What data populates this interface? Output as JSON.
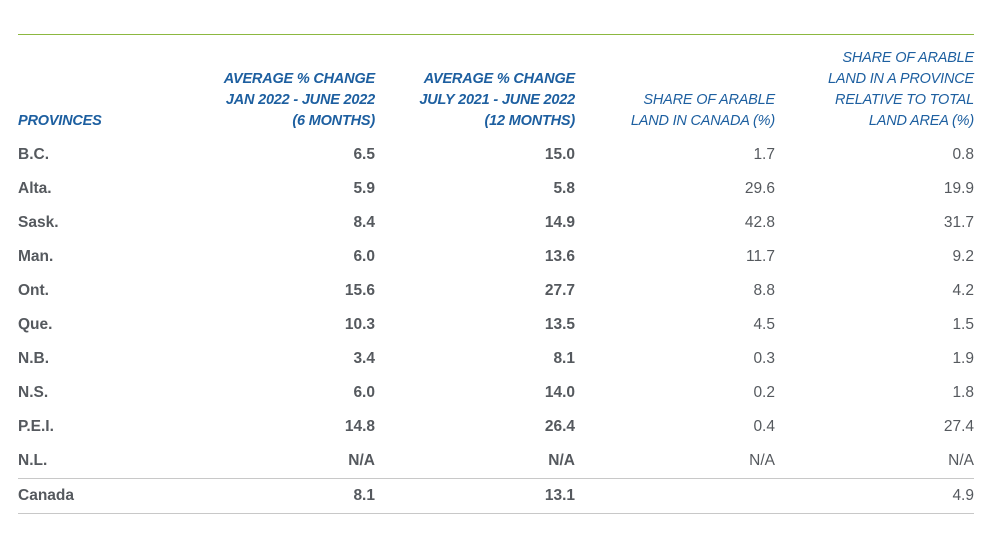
{
  "table": {
    "headers": {
      "provinces": "PROVINCES",
      "col1": "AVERAGE % CHANGE\nJAN 2022 - JUNE 2022\n(6 MONTHS)",
      "col2": "AVERAGE % CHANGE\nJULY 2021 - JUNE 2022\n(12 MONTHS)",
      "col3": "SHARE OF ARABLE\nLAND IN CANADA (%)",
      "col4": "SHARE OF ARABLE\nLAND IN A PROVINCE\nRELATIVE TO TOTAL\nLAND AREA (%)"
    },
    "rows": [
      {
        "province": "B.C.",
        "v1": "6.5",
        "v2": "15.0",
        "v3": "1.7",
        "v4": "0.8"
      },
      {
        "province": "Alta.",
        "v1": "5.9",
        "v2": "5.8",
        "v3": "29.6",
        "v4": "19.9"
      },
      {
        "province": "Sask.",
        "v1": "8.4",
        "v2": "14.9",
        "v3": "42.8",
        "v4": "31.7"
      },
      {
        "province": "Man.",
        "v1": "6.0",
        "v2": "13.6",
        "v3": "11.7",
        "v4": "9.2"
      },
      {
        "province": "Ont.",
        "v1": "15.6",
        "v2": "27.7",
        "v3": "8.8",
        "v4": "4.2"
      },
      {
        "province": "Que.",
        "v1": "10.3",
        "v2": "13.5",
        "v3": "4.5",
        "v4": "1.5"
      },
      {
        "province": "N.B.",
        "v1": "3.4",
        "v2": "8.1",
        "v3": "0.3",
        "v4": "1.9"
      },
      {
        "province": "N.S.",
        "v1": "6.0",
        "v2": "14.0",
        "v3": "0.2",
        "v4": "1.8"
      },
      {
        "province": "P.E.I.",
        "v1": "14.8",
        "v2": "26.4",
        "v3": "0.4",
        "v4": "27.4"
      },
      {
        "province": "N.L.",
        "v1": "N/A",
        "v2": "N/A",
        "v3": "N/A",
        "v4": "N/A"
      }
    ],
    "total": {
      "province": "Canada",
      "v1": "8.1",
      "v2": "13.1",
      "v3": "",
      "v4": "4.9"
    }
  },
  "colors": {
    "header_text": "#1d5fa0",
    "top_rule": "#8cb840",
    "body_text": "#55595e",
    "divider": "#c8c8c8"
  }
}
